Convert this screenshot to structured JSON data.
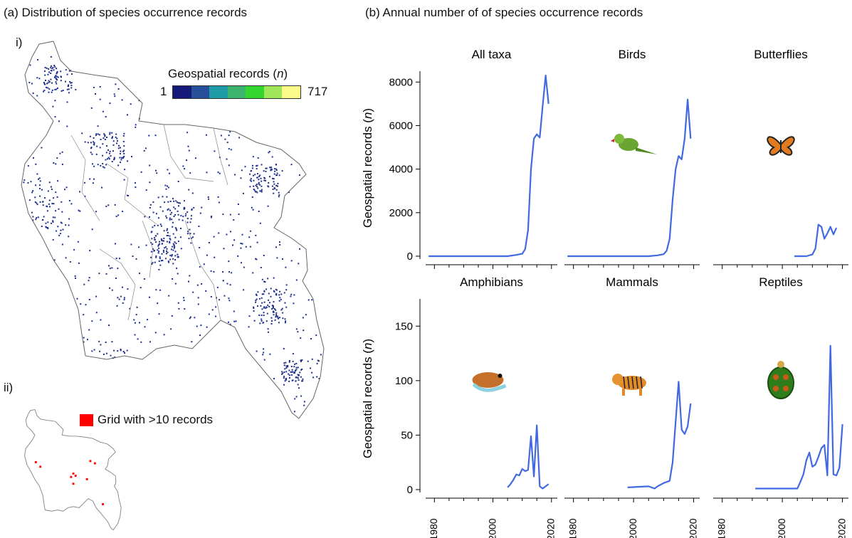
{
  "panel_a": {
    "title": "(a) Distribution of species occurrence records",
    "map_i_label": "i)",
    "map_ii_label": "ii)",
    "legend": {
      "title": "Geospatial records",
      "title_var": "n",
      "min": "1",
      "max": "717",
      "colors": [
        "#151a7a",
        "#27509a",
        "#1f9aa7",
        "#3cb46e",
        "#33d62e",
        "#9fe659",
        "#fbfb8a"
      ]
    },
    "grid_legend": {
      "label": "Grid with >10 records",
      "color": "#ff0000"
    },
    "map_colors": {
      "outline": "#666666",
      "dots": "#1d2f8a",
      "grid": "#ff0000"
    }
  },
  "panel_b": {
    "title": "(b) Annual number of of species occurrence records",
    "ylabel": "Geospatial records",
    "ylabel_var": "n",
    "line_color": "#4169e1"
  },
  "chart_data": [
    {
      "type": "line",
      "title": "All taxa",
      "icon": "none",
      "row": 0,
      "ylim": [
        0,
        8500
      ],
      "yticks": [
        0,
        2000,
        4000,
        6000,
        8000
      ],
      "xlim": [
        1977,
        2022
      ],
      "xticks": [
        1980,
        2000,
        2020
      ],
      "x": [
        1978,
        2005,
        2008,
        2010,
        2011,
        2012,
        2013,
        2014,
        2015,
        2016,
        2017,
        2018,
        2019
      ],
      "y": [
        0,
        0,
        60,
        110,
        320,
        1200,
        4000,
        5400,
        5600,
        5450,
        6900,
        8300,
        7000
      ]
    },
    {
      "type": "line",
      "title": "Birds",
      "icon": "parakeet-icon",
      "row": 0,
      "ylim": [
        0,
        8500
      ],
      "yticks": [
        0,
        2000,
        4000,
        6000,
        8000
      ],
      "xlim": [
        1977,
        2022
      ],
      "xticks": [
        1980,
        2000,
        2020
      ],
      "x": [
        1978,
        2005,
        2008,
        2010,
        2011,
        2012,
        2013,
        2014,
        2015,
        2016,
        2017,
        2018,
        2019
      ],
      "y": [
        0,
        0,
        40,
        90,
        250,
        800,
        2600,
        4000,
        4600,
        4450,
        5400,
        7200,
        5400
      ]
    },
    {
      "type": "line",
      "title": "Butterflies",
      "icon": "butterfly-icon",
      "row": 0,
      "ylim": [
        0,
        8500
      ],
      "yticks": [
        0,
        2000,
        4000,
        6000,
        8000
      ],
      "xlim": [
        1977,
        2022
      ],
      "xticks": [
        1980,
        2000,
        2020
      ],
      "x": [
        2004,
        2008,
        2010,
        2011,
        2012,
        2013,
        2014,
        2015,
        2016,
        2017,
        2018
      ],
      "y": [
        0,
        0,
        80,
        350,
        1450,
        1350,
        800,
        1050,
        1350,
        1000,
        1300
      ]
    },
    {
      "type": "line",
      "title": "Amphibians",
      "icon": "frog-icon",
      "row": 1,
      "ylim": [
        0,
        175
      ],
      "yticks": [
        0,
        50,
        100,
        150
      ],
      "xlim": [
        1977,
        2022
      ],
      "xticks": [
        1980,
        2000,
        2020
      ],
      "x": [
        2005,
        2006,
        2007,
        2008,
        2009,
        2010,
        2011,
        2012,
        2013,
        2014,
        2015,
        2016,
        2017,
        2018,
        2019
      ],
      "y": [
        2,
        5,
        9,
        14,
        13,
        19,
        17,
        18,
        49,
        12,
        59,
        3,
        1,
        3,
        5
      ]
    },
    {
      "type": "line",
      "title": "Mammals",
      "icon": "tiger-icon",
      "row": 1,
      "ylim": [
        0,
        175
      ],
      "yticks": [
        0,
        50,
        100,
        150
      ],
      "xlim": [
        1977,
        2022
      ],
      "xticks": [
        1980,
        2000,
        2020
      ],
      "x": [
        1998,
        2005,
        2007,
        2008,
        2010,
        2012,
        2013,
        2014,
        2015,
        2016,
        2017,
        2018,
        2019
      ],
      "y": [
        2,
        3,
        1,
        3,
        6,
        8,
        25,
        62,
        99,
        55,
        51,
        58,
        79
      ]
    },
    {
      "type": "line",
      "title": "Reptiles",
      "icon": "turtle-icon",
      "row": 1,
      "ylim": [
        0,
        175
      ],
      "yticks": [
        0,
        50,
        100,
        150
      ],
      "xlim": [
        1977,
        2022
      ],
      "xticks": [
        1980,
        2000,
        2020
      ],
      "x": [
        1991,
        2003,
        2005,
        2006,
        2007,
        2008,
        2009,
        2010,
        2011,
        2012,
        2013,
        2014,
        2015,
        2016,
        2017,
        2018,
        2019
      ],
      "y": [
        1,
        1,
        1,
        7,
        14,
        27,
        34,
        21,
        23,
        30,
        38,
        41,
        13,
        132,
        14,
        13,
        20
      ]
    },
    {
      "type": "line",
      "title": "",
      "icon": "none",
      "row": 1,
      "hidden": true,
      "ylim": [
        0,
        175
      ],
      "yticks": [],
      "xlim": [
        1977,
        2022
      ],
      "xticks": [],
      "x": [
        2019,
        2020
      ],
      "y": [
        20,
        60
      ]
    }
  ]
}
